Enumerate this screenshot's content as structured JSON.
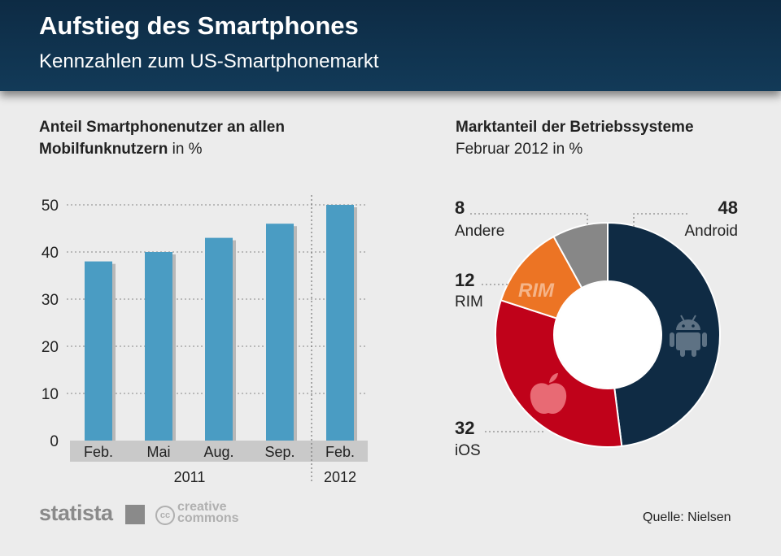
{
  "header": {
    "title": "Aufstieg des Smartphones",
    "subtitle": "Kennzahlen zum US-Smartphonemarkt"
  },
  "bar_section": {
    "title_bold": "Anteil Smartphonenutzer an allen Mobilfunknutzern",
    "title_unit": " in %"
  },
  "pie_section": {
    "title_bold": "Marktanteil der Betriebssysteme",
    "subtitle": "Februar 2012 in %"
  },
  "footer": {
    "brand": "statista",
    "license_line1": "creative",
    "license_line2": "commons",
    "license_badge": "cc",
    "source": "Quelle: Nielsen"
  },
  "colors": {
    "bar": "#4a9cc3",
    "android": "#0f2b44",
    "ios": "#c0021a",
    "rim": "#ec7424",
    "andere": "#878787"
  },
  "chart_data": [
    {
      "type": "bar",
      "categories": [
        "Feb.",
        "Mai",
        "Aug.",
        "Sep.",
        "Feb."
      ],
      "groups": [
        {
          "label": "2011",
          "categories": [
            "Feb.",
            "Mai",
            "Aug.",
            "Sep."
          ]
        },
        {
          "label": "2012",
          "categories": [
            "Feb."
          ]
        }
      ],
      "values": [
        38,
        40,
        43,
        46,
        50
      ],
      "ylim": [
        0,
        50
      ],
      "yticks": [
        0,
        10,
        20,
        30,
        40,
        50
      ],
      "grid": true
    },
    {
      "type": "pie",
      "labels": [
        "Android",
        "iOS",
        "RIM",
        "Andere"
      ],
      "values": [
        48,
        32,
        12,
        8
      ],
      "donut": true,
      "icons": [
        "android-icon",
        "apple-icon",
        "rim-logo",
        ""
      ]
    }
  ]
}
